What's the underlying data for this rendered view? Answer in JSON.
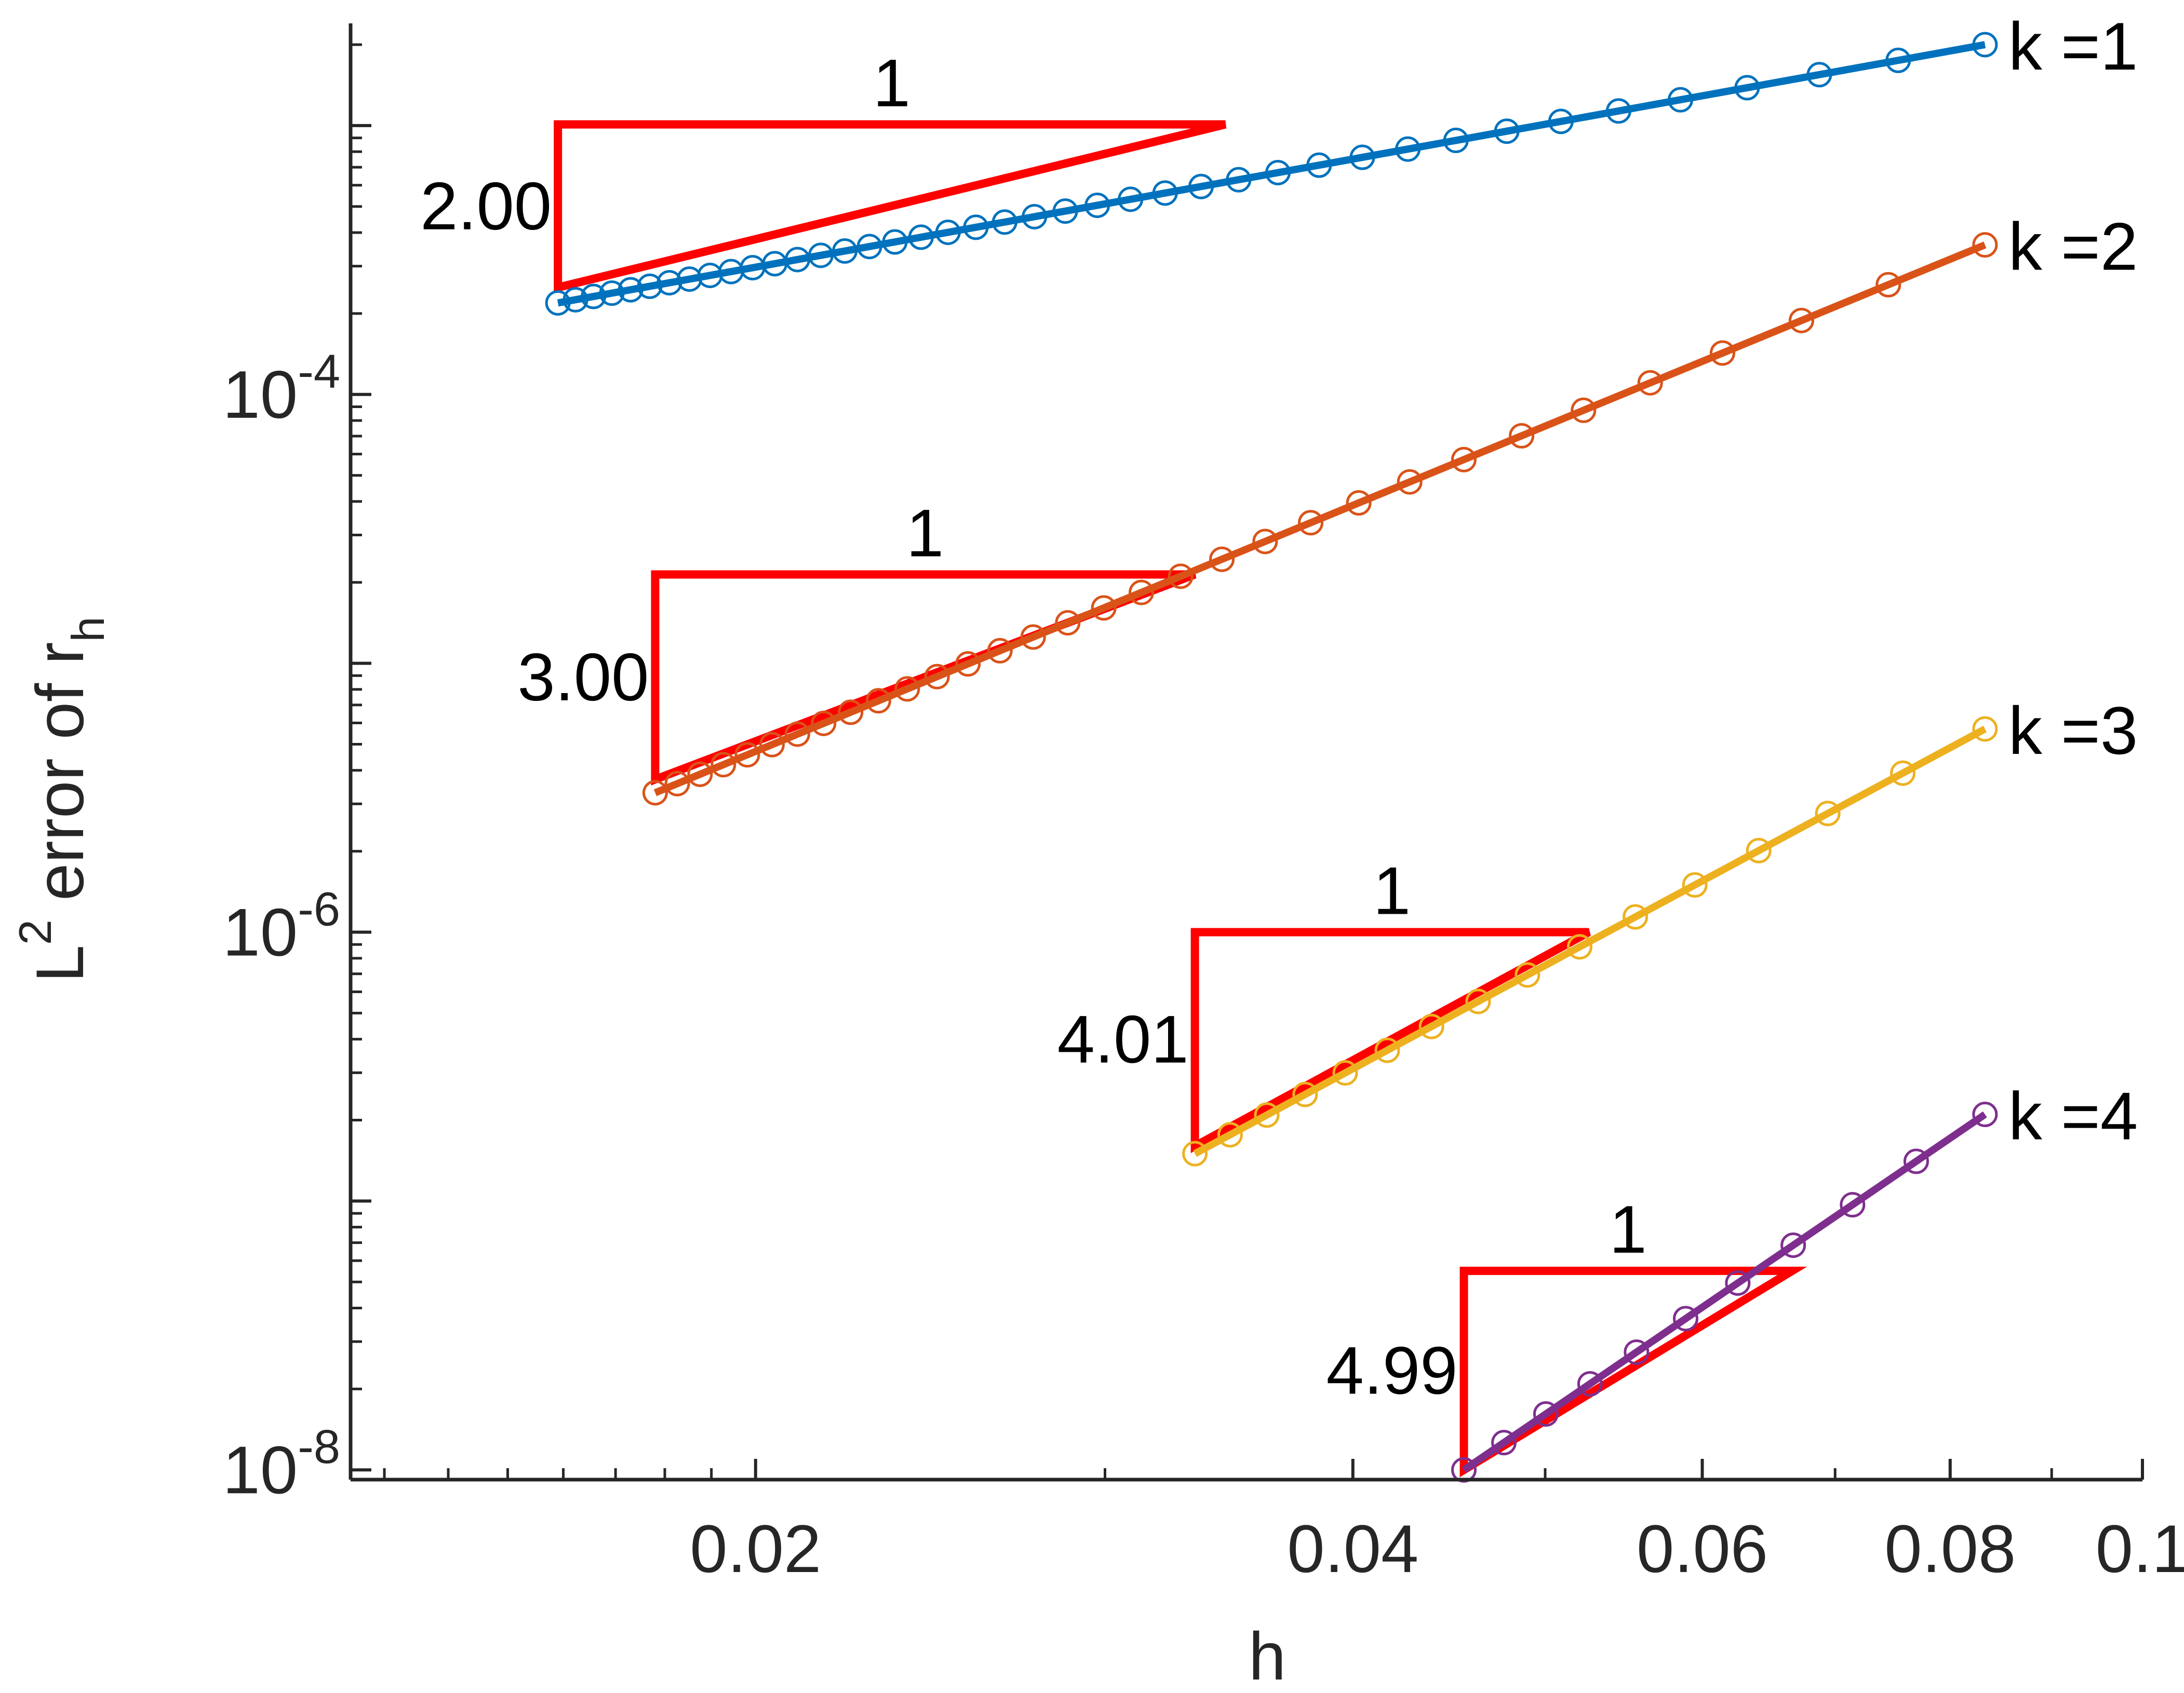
{
  "chart_data": {
    "type": "line",
    "xscale": "log",
    "yscale": "log",
    "xlabel": "h",
    "ylabel": {
      "base": "L",
      "sup": "2",
      "text": " error of r",
      "sub": "h"
    },
    "xlim": [
      0.0125,
      0.1
    ],
    "ylim": [
      9.2e-09,
      0.0024
    ],
    "xticks": [
      {
        "value": 0.02,
        "label": "0.02"
      },
      {
        "value": 0.04,
        "label": "0.04"
      },
      {
        "value": 0.06,
        "label": "0.06"
      },
      {
        "value": 0.08,
        "label": "0.08"
      },
      {
        "value": 0.1,
        "label": "0.1"
      }
    ],
    "yticks": [
      {
        "value": 0.0001,
        "base": "10",
        "exp": "-4"
      },
      {
        "value": 1e-06,
        "base": "10",
        "exp": "-6"
      },
      {
        "value": 1e-08,
        "base": "10",
        "exp": "-8"
      }
    ],
    "series": [
      {
        "name": "k =1",
        "color": "#0072BD",
        "h_min": 0.0159,
        "h_max": 0.0833,
        "e_min": 0.000219,
        "e_max": 0.002,
        "n": 41
      },
      {
        "name": "k =2",
        "color": "#D95319",
        "h_min": 0.0178,
        "h_max": 0.0833,
        "e_min": 3.3e-06,
        "e_max": 0.00036,
        "n": 32
      },
      {
        "name": "k =3",
        "color": "#EDB120",
        "h_min": 0.0333,
        "h_max": 0.0833,
        "e_min": 1.5e-07,
        "e_max": 5.7e-06,
        "n": 16
      },
      {
        "name": "k =4",
        "color": "#7E2F8E",
        "h_min": 0.0455,
        "h_max": 0.0833,
        "e_min": 1e-08,
        "e_max": 2.1e-07,
        "n": 11
      }
    ],
    "slope_triangles": [
      {
        "slope_label": "2.00",
        "run_label": "1",
        "h_left": 0.0159,
        "h_right": 0.0345,
        "e_top": 0.00101,
        "e_bottom": 0.00025
      },
      {
        "slope_label": "3.00",
        "run_label": "1",
        "h_left": 0.0178,
        "h_right": 0.0333,
        "e_top": 2.14e-05,
        "e_bottom": 3.7e-06
      },
      {
        "slope_label": "4.01",
        "run_label": "1",
        "h_left": 0.0333,
        "h_right": 0.0526,
        "e_top": 1e-06,
        "e_bottom": 1.6e-07
      },
      {
        "slope_label": "4.99",
        "run_label": "1",
        "h_left": 0.0455,
        "h_right": 0.0666,
        "e_top": 5.5e-08,
        "e_bottom": 1e-08
      }
    ],
    "triangle_color": "#FF0000"
  }
}
